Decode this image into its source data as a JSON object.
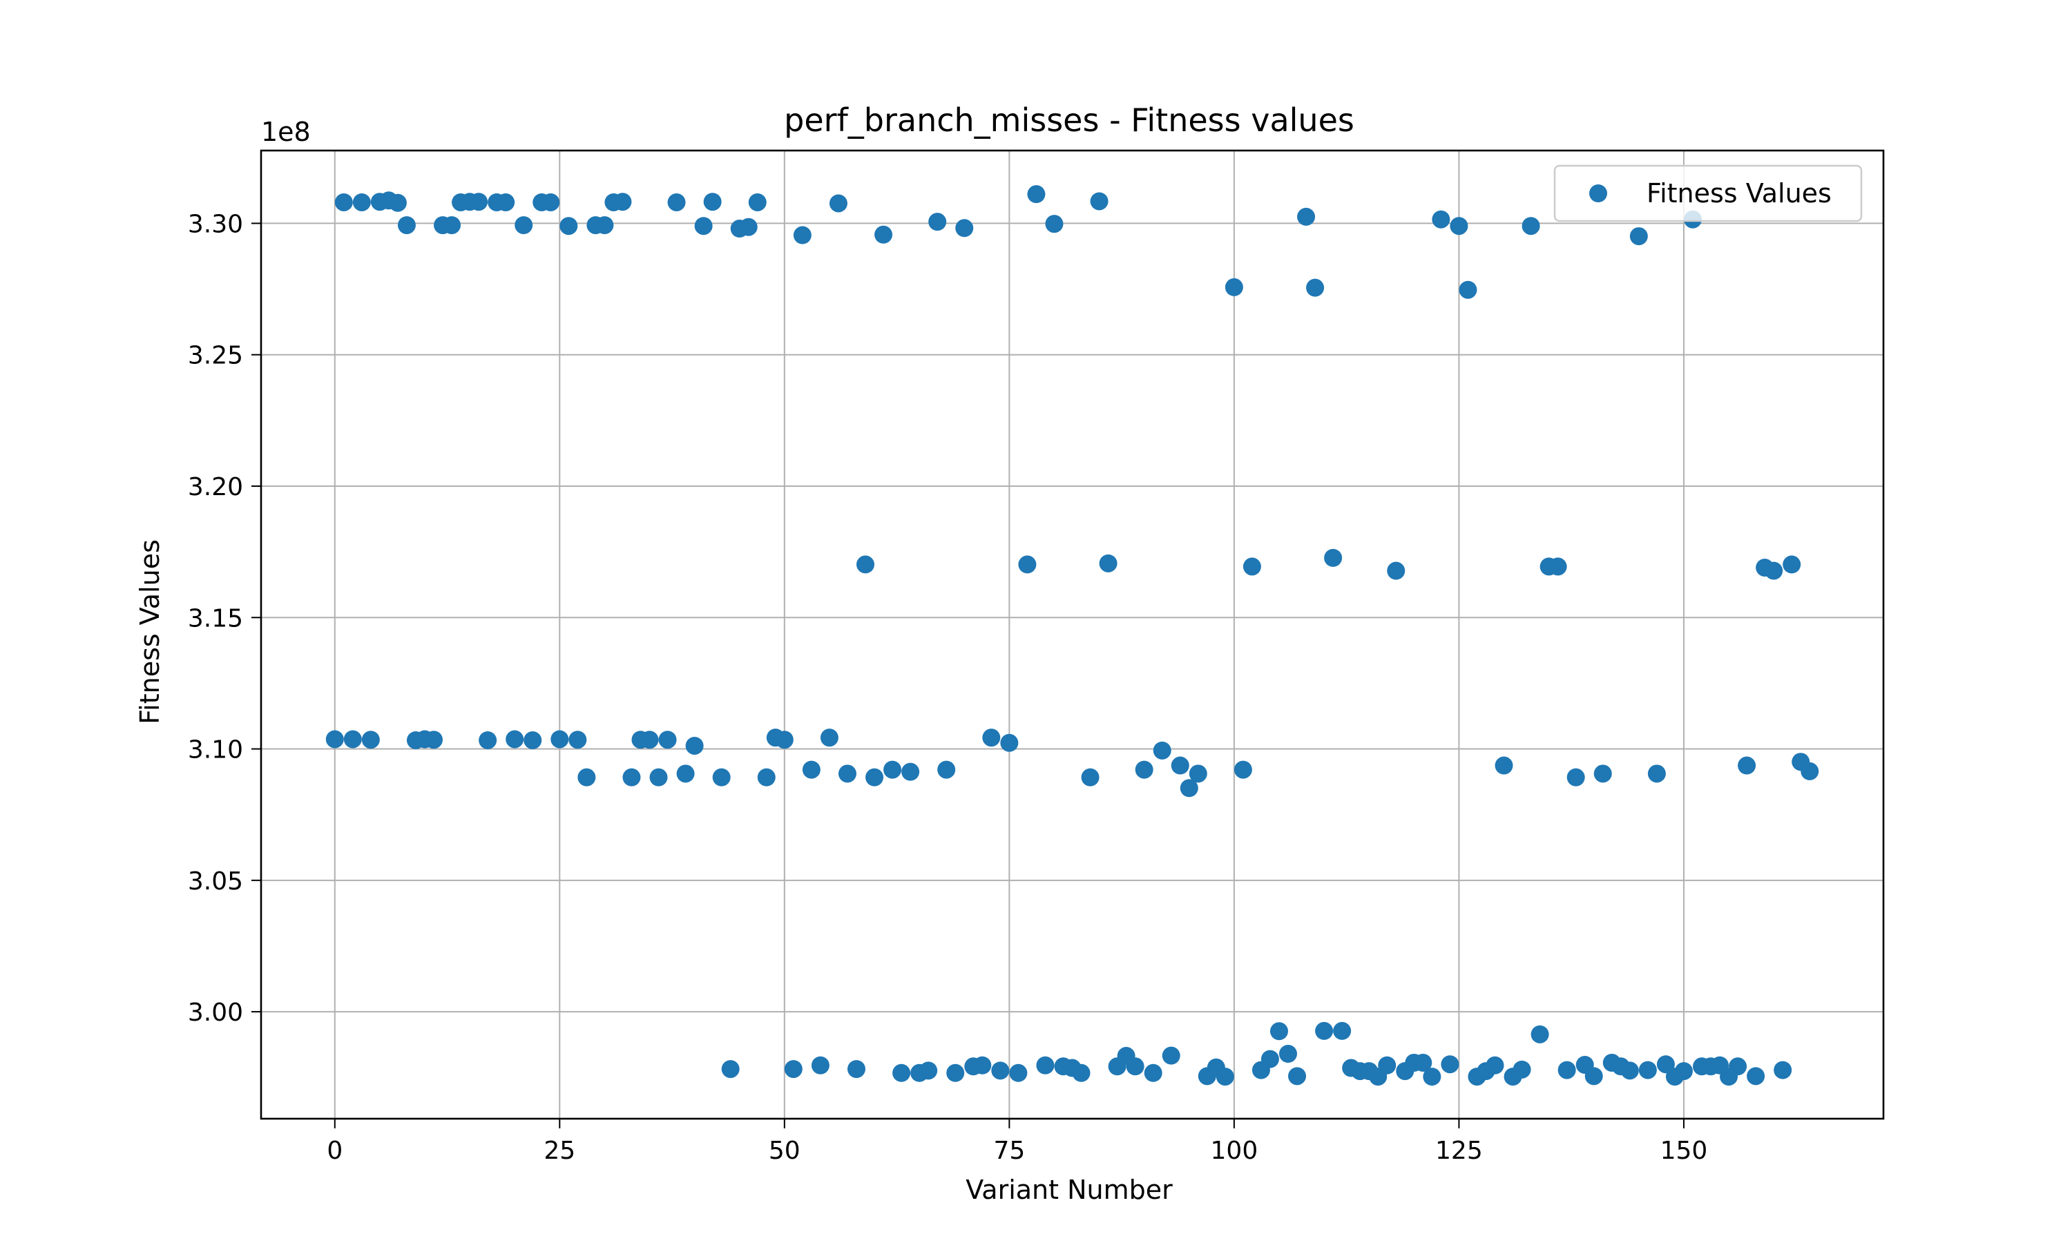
{
  "chart_data": {
    "type": "scatter",
    "title": "perf_branch_misses - Fitness values",
    "xlabel": "Variant Number",
    "ylabel": "Fitness Values",
    "y_offset_label": "1e8",
    "y_scale_factor": 100000000,
    "xlim": [
      -8.2,
      172.2
    ],
    "ylim": [
      2.9593,
      3.3277
    ],
    "xticks": [
      0,
      25,
      50,
      75,
      100,
      125,
      150
    ],
    "yticks": [
      3.0,
      3.05,
      3.1,
      3.15,
      3.2,
      3.25,
      3.3
    ],
    "ytick_labels": [
      "3.00",
      "3.05",
      "3.10",
      "3.15",
      "3.20",
      "3.25",
      "3.30"
    ],
    "grid": true,
    "legend_position": "top-right",
    "series": [
      {
        "name": "Fitness Values",
        "color": "#1f77b4",
        "points": [
          [
            0,
            3.1037
          ],
          [
            1,
            3.308
          ],
          [
            2,
            3.1037
          ],
          [
            3,
            3.308
          ],
          [
            4,
            3.1035
          ],
          [
            5,
            3.3082
          ],
          [
            6,
            3.3087
          ],
          [
            7,
            3.3078
          ],
          [
            8,
            3.2993
          ],
          [
            9,
            3.1033
          ],
          [
            10,
            3.1037
          ],
          [
            11,
            3.1035
          ],
          [
            12,
            3.2993
          ],
          [
            13,
            3.2993
          ],
          [
            14,
            3.308
          ],
          [
            15,
            3.3082
          ],
          [
            16,
            3.3082
          ],
          [
            17,
            3.1033
          ],
          [
            18,
            3.308
          ],
          [
            19,
            3.308
          ],
          [
            20,
            3.1037
          ],
          [
            21,
            3.2993
          ],
          [
            22,
            3.1033
          ],
          [
            23,
            3.308
          ],
          [
            24,
            3.308
          ],
          [
            25,
            3.1037
          ],
          [
            26,
            3.299
          ],
          [
            27,
            3.1035
          ],
          [
            28,
            3.0892
          ],
          [
            29,
            3.2993
          ],
          [
            30,
            3.2993
          ],
          [
            31,
            3.308
          ],
          [
            32,
            3.3082
          ],
          [
            33,
            3.0892
          ],
          [
            34,
            3.1035
          ],
          [
            35,
            3.1035
          ],
          [
            36,
            3.0892
          ],
          [
            37,
            3.1035
          ],
          [
            38,
            3.308
          ],
          [
            39,
            3.0906
          ],
          [
            40,
            3.1012
          ],
          [
            41,
            3.299
          ],
          [
            42,
            3.3082
          ],
          [
            43,
            3.0892
          ],
          [
            44,
            2.9782
          ],
          [
            45,
            3.298
          ],
          [
            46,
            3.2986
          ],
          [
            47,
            3.308
          ],
          [
            48,
            3.0892
          ],
          [
            49,
            3.1043
          ],
          [
            50,
            3.1035
          ],
          [
            51,
            2.9782
          ],
          [
            52,
            3.2955
          ],
          [
            53,
            3.0921
          ],
          [
            54,
            2.9796
          ],
          [
            55,
            3.1043
          ],
          [
            56,
            3.3076
          ],
          [
            57,
            3.0906
          ],
          [
            58,
            2.9782
          ],
          [
            59,
            3.1702
          ],
          [
            60,
            3.0892
          ],
          [
            61,
            3.2957
          ],
          [
            62,
            3.0921
          ],
          [
            63,
            2.9767
          ],
          [
            64,
            3.0913
          ],
          [
            65,
            2.9767
          ],
          [
            66,
            2.9776
          ],
          [
            67,
            3.3006
          ],
          [
            68,
            3.0921
          ],
          [
            69,
            2.9767
          ],
          [
            70,
            3.2982
          ],
          [
            71,
            2.9792
          ],
          [
            72,
            2.9796
          ],
          [
            73,
            3.1043
          ],
          [
            74,
            2.9776
          ],
          [
            75,
            3.1023
          ],
          [
            76,
            2.9767
          ],
          [
            77,
            3.1702
          ],
          [
            78,
            3.3111
          ],
          [
            79,
            2.9796
          ],
          [
            80,
            3.2998
          ],
          [
            81,
            2.9792
          ],
          [
            82,
            2.9786
          ],
          [
            83,
            2.9767
          ],
          [
            84,
            3.0892
          ],
          [
            85,
            3.3084
          ],
          [
            86,
            3.1706
          ],
          [
            87,
            2.9792
          ],
          [
            88,
            2.9832
          ],
          [
            89,
            2.9792
          ],
          [
            90,
            3.0921
          ],
          [
            91,
            2.9767
          ],
          [
            92,
            3.0994
          ],
          [
            93,
            2.9833
          ],
          [
            94,
            3.0937
          ],
          [
            95,
            3.0851
          ],
          [
            96,
            3.0906
          ],
          [
            97,
            2.9755
          ],
          [
            98,
            2.9788
          ],
          [
            99,
            2.9753
          ],
          [
            100,
            3.2757
          ],
          [
            101,
            3.0921
          ],
          [
            102,
            3.1694
          ],
          [
            103,
            2.9778
          ],
          [
            104,
            2.982
          ],
          [
            105,
            2.9926
          ],
          [
            106,
            2.984
          ],
          [
            107,
            2.9755
          ],
          [
            108,
            3.3025
          ],
          [
            109,
            3.2755
          ],
          [
            110,
            2.9927
          ],
          [
            111,
            3.1727
          ],
          [
            112,
            2.9927
          ],
          [
            113,
            2.9786
          ],
          [
            114,
            2.9774
          ],
          [
            115,
            2.9774
          ],
          [
            116,
            2.9753
          ],
          [
            117,
            2.9796
          ],
          [
            118,
            3.1678
          ],
          [
            119,
            2.9774
          ],
          [
            120,
            2.9806
          ],
          [
            121,
            2.9806
          ],
          [
            122,
            2.9753
          ],
          [
            123,
            3.3015
          ],
          [
            124,
            2.98
          ],
          [
            125,
            3.299
          ],
          [
            126,
            3.2747
          ],
          [
            127,
            2.9753
          ],
          [
            128,
            2.9774
          ],
          [
            129,
            2.9796
          ],
          [
            130,
            3.0937
          ],
          [
            131,
            2.9753
          ],
          [
            132,
            2.978
          ],
          [
            133,
            3.299
          ],
          [
            134,
            2.9914
          ],
          [
            135,
            3.1694
          ],
          [
            136,
            3.1694
          ],
          [
            137,
            2.9778
          ],
          [
            138,
            3.0892
          ],
          [
            139,
            2.9798
          ],
          [
            140,
            2.9755
          ],
          [
            141,
            3.0906
          ],
          [
            142,
            2.9806
          ],
          [
            143,
            2.9792
          ],
          [
            144,
            2.9776
          ],
          [
            145,
            3.2951
          ],
          [
            146,
            2.9778
          ],
          [
            147,
            3.0906
          ],
          [
            148,
            2.98
          ],
          [
            149,
            2.9753
          ],
          [
            150,
            2.9774
          ],
          [
            151,
            3.3015
          ],
          [
            152,
            2.9792
          ],
          [
            153,
            2.9792
          ],
          [
            154,
            2.9796
          ],
          [
            155,
            2.9753
          ],
          [
            156,
            2.9792
          ],
          [
            157,
            3.0937
          ],
          [
            158,
            2.9755
          ],
          [
            159,
            3.169
          ],
          [
            160,
            3.1678
          ],
          [
            161,
            2.9778
          ],
          [
            162,
            3.1702
          ],
          [
            163,
            3.0951
          ],
          [
            164,
            3.0915
          ]
        ]
      }
    ]
  }
}
